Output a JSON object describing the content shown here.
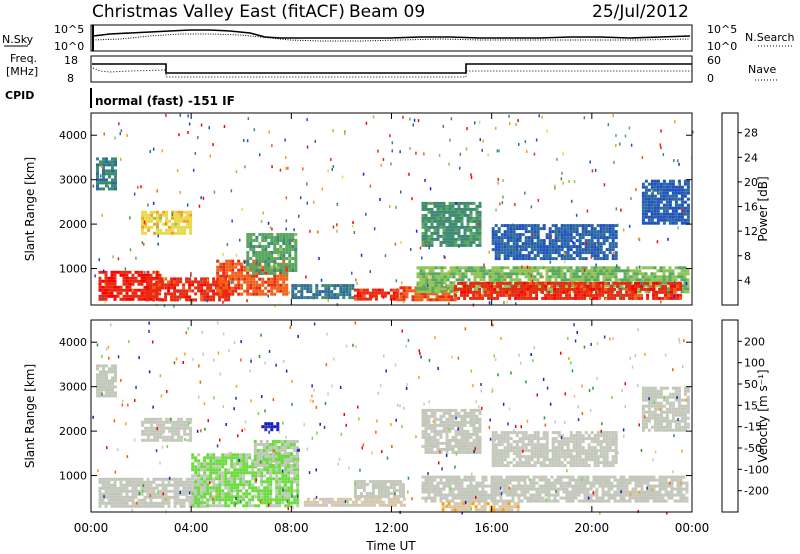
{
  "header": {
    "station": "Christmas Valley East (fitACF)",
    "beam": "Beam 09",
    "date": "25/Jul/2012"
  },
  "params": {
    "nsky_label": "N.Sky",
    "nsearch_label": "N.Search",
    "nsky_ticks": [
      "10^5",
      "10^0"
    ],
    "nsearch_ticks": [
      "10^5",
      "10^0"
    ],
    "freq_label_1": "Freq.",
    "freq_label_2": "[MHz]",
    "freq_ticks": [
      "18",
      "8"
    ],
    "nave_label": "Nave",
    "nave_ticks": [
      "60",
      "0"
    ],
    "cpid_label": "CPID",
    "cpid_value": "normal (fast) -151 IF"
  },
  "colors": {
    "power_scale": [
      "#1a1aff",
      "#1f4fc0",
      "#2b6aa0",
      "#3f8a72",
      "#5aa860",
      "#8fc456",
      "#e8d84a",
      "#f5a020",
      "#f06018",
      "#e82a10",
      "#ff0000"
    ],
    "velocity_scale": [
      "#ff0000",
      "#ff5a00",
      "#ffa000",
      "#d9c8a8",
      "#c8c8c0",
      "#c0c8b8",
      "#6adc3c",
      "#2a9a2a",
      "#2a3aa0",
      "#1a1ac8"
    ]
  },
  "chart_data": [
    {
      "type": "heatmap",
      "name": "power",
      "ylabel": "Slant Range [km]",
      "xlabel": "",
      "ylim": [
        180,
        4500
      ],
      "yticks": [
        1000,
        2000,
        3000,
        4000
      ],
      "xlim": [
        0,
        24
      ],
      "xticks": [
        "00:00",
        "04:00",
        "08:00",
        "12:00",
        "16:00",
        "20:00",
        "00:00"
      ],
      "colorbar": {
        "label": "Power [dB]",
        "ticks": [
          "4",
          "8",
          "12",
          "16",
          "20",
          "24",
          "28"
        ],
        "range": [
          0,
          30
        ]
      },
      "regions": [
        {
          "t0": 0.3,
          "t1": 2.8,
          "r0": 300,
          "r1": 950,
          "value": 27
        },
        {
          "t0": 2.2,
          "t1": 5.5,
          "r0": 300,
          "r1": 800,
          "value": 26
        },
        {
          "t0": 5.0,
          "t1": 7.8,
          "r0": 400,
          "r1": 1200,
          "value": 24
        },
        {
          "t0": 6.2,
          "t1": 8.2,
          "r0": 900,
          "r1": 1800,
          "value": 12
        },
        {
          "t0": 0.2,
          "t1": 1.0,
          "r0": 2800,
          "r1": 3500,
          "value": 9
        },
        {
          "t0": 2.0,
          "t1": 4.0,
          "r0": 1800,
          "r1": 2300,
          "value": 18
        },
        {
          "t0": 8.0,
          "t1": 10.5,
          "r0": 350,
          "r1": 650,
          "value": 8
        },
        {
          "t0": 10.5,
          "t1": 12.2,
          "r0": 300,
          "r1": 550,
          "value": 26
        },
        {
          "t0": 12.2,
          "t1": 14.5,
          "r0": 300,
          "r1": 600,
          "value": 24
        },
        {
          "t0": 13.0,
          "t1": 23.8,
          "r0": 500,
          "r1": 1050,
          "value": 14
        },
        {
          "t0": 14.5,
          "t1": 23.5,
          "r0": 350,
          "r1": 700,
          "value": 26
        },
        {
          "t0": 13.2,
          "t1": 15.5,
          "r0": 1500,
          "r1": 2500,
          "value": 10
        },
        {
          "t0": 16.0,
          "t1": 21.0,
          "r0": 1200,
          "r1": 2000,
          "value": 6
        },
        {
          "t0": 22.0,
          "t1": 23.8,
          "r0": 2000,
          "r1": 3000,
          "value": 5
        }
      ]
    },
    {
      "type": "heatmap",
      "name": "velocity",
      "ylabel": "Slant Range [km]",
      "xlabel": "Time UT",
      "ylim": [
        180,
        4500
      ],
      "yticks": [
        1000,
        2000,
        3000,
        4000
      ],
      "xlim": [
        0,
        24
      ],
      "xticks": [
        "00:00",
        "04:00",
        "08:00",
        "12:00",
        "16:00",
        "20:00",
        "00:00"
      ],
      "colorbar": {
        "label": "Velocity [m s⁻¹]",
        "ticks": [
          "200",
          "100",
          "50",
          "15",
          "-15",
          "-50",
          "-100",
          "-200"
        ],
        "range": [
          -250,
          250
        ]
      },
      "regions": [
        {
          "t0": 0.3,
          "t1": 4.5,
          "r0": 300,
          "r1": 950,
          "value": 0
        },
        {
          "t0": 4.0,
          "t1": 8.2,
          "r0": 350,
          "r1": 1500,
          "value": 60
        },
        {
          "t0": 6.5,
          "t1": 8.2,
          "r0": 1200,
          "r1": 1800,
          "value": 40
        },
        {
          "t0": 2.0,
          "t1": 4.0,
          "r0": 1800,
          "r1": 2300,
          "value": 0
        },
        {
          "t0": 0.2,
          "t1": 1.0,
          "r0": 2800,
          "r1": 3500,
          "value": 0
        },
        {
          "t0": 6.8,
          "t1": 7.5,
          "r0": 2000,
          "r1": 2200,
          "value": 220
        },
        {
          "t0": 8.5,
          "t1": 12.5,
          "r0": 300,
          "r1": 500,
          "value": -60
        },
        {
          "t0": 10.5,
          "t1": 12.5,
          "r0": 500,
          "r1": 900,
          "value": 0
        },
        {
          "t0": 13.2,
          "t1": 23.8,
          "r0": 400,
          "r1": 1000,
          "value": 0
        },
        {
          "t0": 14.0,
          "t1": 17.0,
          "r0": 250,
          "r1": 400,
          "value": -80
        },
        {
          "t0": 13.2,
          "t1": 15.5,
          "r0": 1500,
          "r1": 2500,
          "value": 0
        },
        {
          "t0": 16.0,
          "t1": 21.0,
          "r0": 1200,
          "r1": 2000,
          "value": 0
        },
        {
          "t0": 22.0,
          "t1": 23.8,
          "r0": 2000,
          "r1": 3000,
          "value": 10
        }
      ]
    }
  ]
}
